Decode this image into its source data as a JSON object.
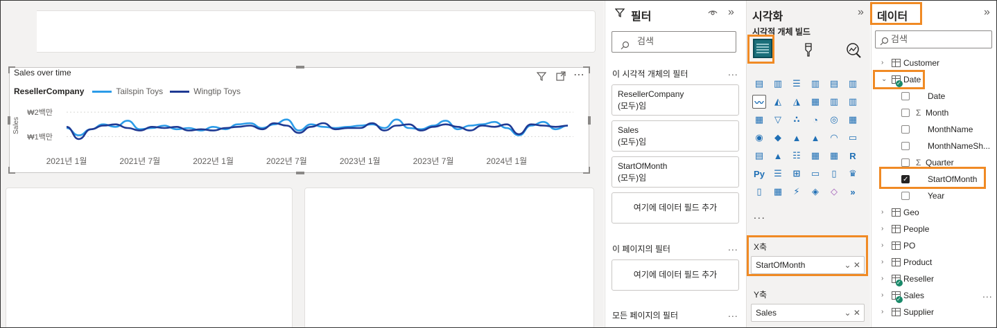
{
  "canvas": {
    "chart": {
      "title": "Sales over time",
      "legend_title": "ResellerCompany"
    }
  },
  "chart_data": {
    "type": "line",
    "title": "Sales over time",
    "xlabel": "",
    "ylabel": "Sales",
    "x_tick_labels": [
      "2021년 1월",
      "2021년 7월",
      "2022년 1월",
      "2022년 7월",
      "2023년 1월",
      "2023년 7월",
      "2024년 1월"
    ],
    "y_tick_labels": [
      "₩1백만",
      "₩2백만"
    ],
    "y_ticks": [
      1000000,
      2000000
    ],
    "ylim": [
      700000,
      2200000
    ],
    "x_range": [
      "2021-01",
      "2024-06"
    ],
    "grid": true,
    "legend_position": "top-left",
    "series": [
      {
        "name": "Tailspin Toys",
        "color": "#2b9be8",
        "x": [
          "2021-01",
          "2021-02",
          "2021-03",
          "2021-04",
          "2021-05",
          "2021-06",
          "2021-07",
          "2021-08",
          "2021-09",
          "2021-10",
          "2021-11",
          "2021-12",
          "2022-01",
          "2022-02",
          "2022-03",
          "2022-04",
          "2022-05",
          "2022-06",
          "2022-07",
          "2022-08",
          "2022-09",
          "2022-10",
          "2022-11",
          "2022-12",
          "2023-01",
          "2023-02",
          "2023-03",
          "2023-04",
          "2023-05",
          "2023-06",
          "2023-07",
          "2023-08",
          "2023-09",
          "2023-10",
          "2023-11",
          "2023-12",
          "2024-01",
          "2024-02",
          "2024-03",
          "2024-04",
          "2024-05",
          "2024-06"
        ],
        "values": [
          1350000,
          1050000,
          1300000,
          1500000,
          1400000,
          1650000,
          1300000,
          1350000,
          1450000,
          1300000,
          1350000,
          1250000,
          1400000,
          1300000,
          1500000,
          1550000,
          1350000,
          1500000,
          1700000,
          1250000,
          1500000,
          1400000,
          1350000,
          1400000,
          1450000,
          1500000,
          1350000,
          1700000,
          1350000,
          1300000,
          1450000,
          1650000,
          1300000,
          1450000,
          1500000,
          1600000,
          1350000,
          1050000,
          1450000,
          1600000,
          1300000,
          1450000
        ]
      },
      {
        "name": "Wingtip Toys",
        "color": "#1f3a93",
        "x": [
          "2021-01",
          "2021-02",
          "2021-03",
          "2021-04",
          "2021-05",
          "2021-06",
          "2021-07",
          "2021-08",
          "2021-09",
          "2021-10",
          "2021-11",
          "2021-12",
          "2022-01",
          "2022-02",
          "2022-03",
          "2022-04",
          "2022-05",
          "2022-06",
          "2022-07",
          "2022-08",
          "2022-09",
          "2022-10",
          "2022-11",
          "2022-12",
          "2023-01",
          "2023-02",
          "2023-03",
          "2023-04",
          "2023-05",
          "2023-06",
          "2023-07",
          "2023-08",
          "2023-09",
          "2023-10",
          "2023-11",
          "2023-12",
          "2024-01",
          "2024-02",
          "2024-03",
          "2024-04",
          "2024-05",
          "2024-06"
        ],
        "values": [
          1400000,
          900000,
          1300000,
          1450000,
          1500000,
          1350000,
          1250000,
          1400000,
          1350000,
          1400000,
          1250000,
          1300000,
          1250000,
          1350000,
          1400000,
          1450000,
          1300000,
          1550000,
          1450000,
          1150000,
          1400000,
          1550000,
          1300000,
          1350000,
          1350000,
          1550000,
          1250000,
          1450000,
          1500000,
          1250000,
          1400000,
          1500000,
          1400000,
          1250000,
          1450000,
          1400000,
          1500000,
          1100000,
          1500000,
          1450000,
          1400000,
          1450000
        ]
      }
    ]
  },
  "filters": {
    "title": "필터",
    "search_placeholder": "검색",
    "visual_section": "이 시각적 개체의 필터",
    "cards": [
      {
        "field": "ResellerCompany",
        "state": "(모두)임"
      },
      {
        "field": "Sales",
        "state": "(모두)임"
      },
      {
        "field": "StartOfMonth",
        "state": "(모두)임"
      }
    ],
    "add_field": "여기에 데이터 필드 추가",
    "page_section": "이 페이지의 필터",
    "page_add_field": "여기에 데이터 필드 추가",
    "all_pages_section": "모든 페이지의 필터",
    "more": "..."
  },
  "viz": {
    "title": "시각화",
    "subtitle": "시각적 개체 빌드",
    "more": "...",
    "xaxis_label": "X축",
    "xaxis_field": "StartOfMonth",
    "yaxis_label": "Y축",
    "yaxis_field": "Sales",
    "icons": [
      {
        "name": "stacked-bar-chart-icon",
        "glyph": "▤",
        "color": "#1f6fb5"
      },
      {
        "name": "stacked-column-chart-icon",
        "glyph": "▥",
        "color": "#1f6fb5"
      },
      {
        "name": "clustered-bar-chart-icon",
        "glyph": "☰",
        "color": "#1f6fb5"
      },
      {
        "name": "clustered-column-chart-icon",
        "glyph": "▥",
        "color": "#1f6fb5"
      },
      {
        "name": "100-stacked-bar-chart-icon",
        "glyph": "▤",
        "color": "#1f6fb5"
      },
      {
        "name": "100-stacked-column-chart-icon",
        "glyph": "▥",
        "color": "#1f6fb5"
      },
      {
        "name": "line-chart-icon",
        "glyph": "〰",
        "color": "#1f6fb5"
      },
      {
        "name": "area-chart-icon",
        "glyph": "◭",
        "color": "#1f6fb5"
      },
      {
        "name": "stacked-area-chart-icon",
        "glyph": "◮",
        "color": "#1f6fb5"
      },
      {
        "name": "line-stacked-column-chart-icon",
        "glyph": "▦",
        "color": "#1f6fb5"
      },
      {
        "name": "line-clustered-column-chart-icon",
        "glyph": "▥",
        "color": "#1f6fb5"
      },
      {
        "name": "ribbon-chart-icon",
        "glyph": "▥",
        "color": "#1f6fb5"
      },
      {
        "name": "waterfall-chart-icon",
        "glyph": "▦",
        "color": "#1f6fb5"
      },
      {
        "name": "funnel-icon",
        "glyph": "▽",
        "color": "#1f6fb5"
      },
      {
        "name": "scatter-chart-icon",
        "glyph": "∴",
        "color": "#1f6fb5"
      },
      {
        "name": "pie-chart-icon",
        "glyph": "◔",
        "color": "#1f6fb5"
      },
      {
        "name": "donut-chart-icon",
        "glyph": "◎",
        "color": "#1f6fb5"
      },
      {
        "name": "treemap-icon",
        "glyph": "▦",
        "color": "#1f6fb5"
      },
      {
        "name": "map-icon",
        "glyph": "◉",
        "color": "#1f6fb5"
      },
      {
        "name": "filled-map-icon",
        "glyph": "◆",
        "color": "#1f6fb5"
      },
      {
        "name": "shape-map-icon",
        "glyph": "▲",
        "color": "#1f6fb5"
      },
      {
        "name": "azure-map-icon",
        "glyph": "▲",
        "color": "#1f6fb5"
      },
      {
        "name": "gauge-icon",
        "glyph": "◠",
        "color": "#1f6fb5"
      },
      {
        "name": "card-icon",
        "glyph": "▭",
        "color": "#1f6fb5"
      },
      {
        "name": "multi-row-card-icon",
        "glyph": "▤",
        "color": "#1f6fb5"
      },
      {
        "name": "kpi-icon",
        "glyph": "▲",
        "color": "#1f6fb5"
      },
      {
        "name": "slicer-icon",
        "glyph": "☷",
        "color": "#1f6fb5"
      },
      {
        "name": "table-icon",
        "glyph": "▦",
        "color": "#1f6fb5"
      },
      {
        "name": "matrix-icon",
        "glyph": "▦",
        "color": "#1f6fb5"
      },
      {
        "name": "r-visual-icon",
        "glyph": "R",
        "color": "#1f6fb5"
      },
      {
        "name": "python-visual-icon",
        "glyph": "Py",
        "color": "#1f6fb5"
      },
      {
        "name": "key-influencers-icon",
        "glyph": "☰",
        "color": "#1f6fb5"
      },
      {
        "name": "decomposition-tree-icon",
        "glyph": "⊞",
        "color": "#1f6fb5"
      },
      {
        "name": "qa-icon",
        "glyph": "▭",
        "color": "#1f6fb5"
      },
      {
        "name": "narrative-icon",
        "glyph": "▯",
        "color": "#1f6fb5"
      },
      {
        "name": "goals-icon",
        "glyph": "♛",
        "color": "#1f6fb5"
      },
      {
        "name": "paginated-report-icon",
        "glyph": "▯",
        "color": "#1f6fb5"
      },
      {
        "name": "power-apps-icon",
        "glyph": "▦",
        "color": "#1f6fb5"
      },
      {
        "name": "power-automate-icon",
        "glyph": "⚡",
        "color": "#1f6fb5"
      },
      {
        "name": "metrics-icon",
        "glyph": "◈",
        "color": "#1f6fb5"
      },
      {
        "name": "diamond-icon",
        "glyph": "◇",
        "color": "#a05ab8"
      },
      {
        "name": "chevron-visual-icon",
        "glyph": "»",
        "color": "#1f6fb5"
      }
    ]
  },
  "data_pane": {
    "title": "데이터",
    "search_placeholder": "검색",
    "tables_before": [
      "Customer"
    ],
    "date_table": "Date",
    "date_fields": [
      {
        "label": "Date",
        "sigma": false,
        "checked": false
      },
      {
        "label": "Month",
        "sigma": true,
        "checked": false
      },
      {
        "label": "MonthName",
        "sigma": false,
        "checked": false
      },
      {
        "label": "MonthNameSh...",
        "sigma": false,
        "checked": false
      },
      {
        "label": "Quarter",
        "sigma": true,
        "checked": false
      },
      {
        "label": "StartOfMonth",
        "sigma": false,
        "checked": true
      },
      {
        "label": "Year",
        "sigma": false,
        "checked": false
      }
    ],
    "tables_after": [
      {
        "label": "Geo",
        "badge": false
      },
      {
        "label": "People",
        "badge": false
      },
      {
        "label": "PO",
        "badge": false
      },
      {
        "label": "Product",
        "badge": false
      },
      {
        "label": "Reseller",
        "badge": true
      },
      {
        "label": "Sales",
        "badge": true
      },
      {
        "label": "Supplier",
        "badge": false
      }
    ],
    "more": "..."
  }
}
